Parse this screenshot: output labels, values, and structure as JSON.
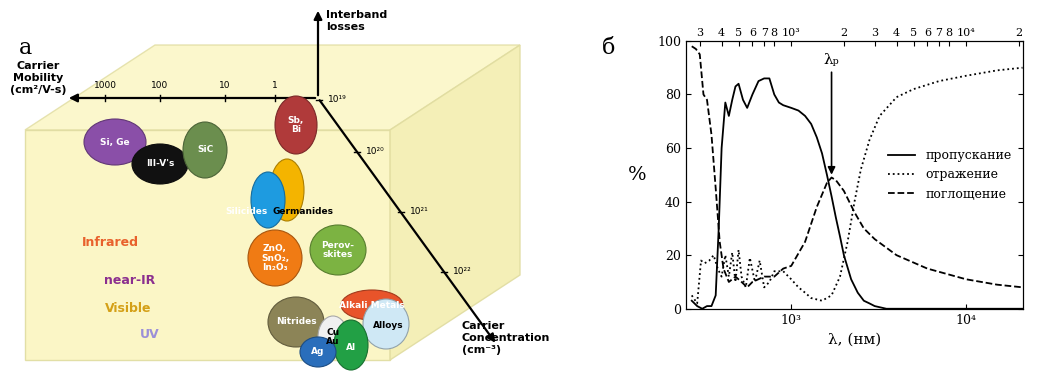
{
  "diagram": {
    "label": "а",
    "axes": {
      "vertical": {
        "label": "Interband\nlosses"
      },
      "mobility": {
        "label": "Carrier\nMobility\n(cm²/V-s)",
        "ticks": [
          "1000",
          "100",
          "10",
          "1"
        ]
      },
      "concentration": {
        "label": "Carrier\nConcentration\n(cm⁻³)",
        "ticks": [
          "10¹⁹",
          "10²⁰",
          "10²¹",
          "10²²"
        ]
      }
    },
    "regions": [
      {
        "label": "Infrared",
        "color": "#e8612c"
      },
      {
        "label": "near-IR",
        "color": "#8b2f8f"
      },
      {
        "label": "Visible",
        "color": "#d4a017"
      },
      {
        "label": "UV",
        "color": "#9b8fd8"
      }
    ],
    "materials": [
      {
        "label": "Si, Ge",
        "color": "#8a4fa8"
      },
      {
        "label": "III-V's",
        "color": "#111111"
      },
      {
        "label": "SiC",
        "color": "#6b8e4e"
      },
      {
        "label": "Sb,\nBi",
        "color": "#b03a3a"
      },
      {
        "label": "Germanides",
        "color": "#f4b400"
      },
      {
        "label": "Silicides",
        "color": "#1e9be0"
      },
      {
        "label": "ZnO,\nSnO₂,\nIn₂O₃",
        "color": "#f07b14"
      },
      {
        "label": "Perov-\nskites",
        "color": "#7cb342"
      },
      {
        "label": "Nitrides",
        "color": "#8c8457"
      },
      {
        "label": "Alkali Metals",
        "color": "#e8542a"
      },
      {
        "label": "Alloys",
        "color": "#cfe8f5"
      },
      {
        "label": "Cu\nAu",
        "color": "#f0f0f0"
      },
      {
        "label": "Al",
        "color": "#22a045"
      },
      {
        "label": "Ag",
        "color": "#2a6ebb"
      }
    ]
  },
  "chart_data": {
    "type": "line",
    "title": "б",
    "x_label": "λ, (нм)",
    "y_label": "%",
    "log": "x",
    "grid": false,
    "legend": "center right",
    "xlim": [
      250,
      21000
    ],
    "ylim": [
      0,
      100
    ],
    "yticks": [
      0,
      20,
      40,
      60,
      80,
      100
    ],
    "xticks": [
      {
        "value": 1000,
        "label": "10³"
      },
      {
        "value": 10000,
        "label": "10⁴"
      }
    ],
    "x2ticks": [
      {
        "value": 300,
        "label": "3"
      },
      {
        "value": 400,
        "label": "4"
      },
      {
        "value": 500,
        "label": "5"
      },
      {
        "value": 600,
        "label": "6"
      },
      {
        "value": 700,
        "label": "7"
      },
      {
        "value": 800,
        "label": "8"
      },
      {
        "value": 1000,
        "label": "10³"
      },
      {
        "value": 2000,
        "label": "2"
      },
      {
        "value": 3000,
        "label": "3"
      },
      {
        "value": 4000,
        "label": "4"
      },
      {
        "value": 5000,
        "label": "5"
      },
      {
        "value": 6000,
        "label": "6"
      },
      {
        "value": 7000,
        "label": "7"
      },
      {
        "value": 8000,
        "label": "8"
      },
      {
        "value": 10000,
        "label": "10⁴"
      },
      {
        "value": 20000,
        "label": "2"
      }
    ],
    "series": [
      {
        "name": "пропускание",
        "color": "#000000",
        "line_style": "solid",
        "x": [
          270,
          290,
          310,
          330,
          350,
          370,
          385,
          400,
          420,
          440,
          460,
          480,
          500,
          530,
          560,
          600,
          650,
          700,
          750,
          800,
          850,
          900,
          1000,
          1100,
          1200,
          1300,
          1400,
          1500,
          1600,
          1700,
          1800,
          1900,
          2000,
          2200,
          2400,
          2600,
          2800,
          3000,
          3500,
          5000,
          10000,
          21000
        ],
        "values": [
          3,
          1,
          0,
          1,
          1,
          5,
          30,
          60,
          77,
          72,
          78,
          83,
          84,
          78,
          75,
          80,
          85,
          86,
          86,
          80,
          77,
          76,
          75,
          74,
          72,
          69,
          64,
          58,
          50,
          42,
          34,
          27,
          20,
          11,
          6,
          3,
          2,
          1,
          0,
          0,
          0,
          0
        ]
      },
      {
        "name": "отражение",
        "color": "#000000",
        "line_style": "dotted",
        "x": [
          270,
          290,
          305,
          320,
          340,
          360,
          380,
          400,
          420,
          440,
          460,
          480,
          500,
          520,
          550,
          580,
          620,
          660,
          700,
          750,
          800,
          900,
          1000,
          1100,
          1200,
          1300,
          1500,
          1700,
          1900,
          2100,
          2300,
          2500,
          2800,
          3200,
          4000,
          5000,
          7000,
          10000,
          15000,
          21000
        ],
        "values": [
          5,
          2,
          18,
          17,
          18,
          20,
          15,
          12,
          20,
          12,
          21,
          10,
          22,
          12,
          8,
          19,
          10,
          18,
          8,
          10,
          14,
          14,
          11,
          8,
          6,
          4,
          3,
          5,
          12,
          25,
          40,
          52,
          63,
          72,
          79,
          82,
          85,
          87,
          89,
          90
        ]
      },
      {
        "name": "поглощение",
        "color": "#000000",
        "line_style": "dashed",
        "x": [
          270,
          285,
          300,
          315,
          330,
          350,
          370,
          390,
          410,
          440,
          480,
          520,
          560,
          600,
          700,
          800,
          900,
          1000,
          1200,
          1400,
          1600,
          1700,
          1800,
          2000,
          2300,
          2600,
          3000,
          4000,
          6000,
          10000,
          15000,
          21000
        ],
        "values": [
          98,
          97,
          95,
          80,
          78,
          65,
          45,
          25,
          15,
          10,
          12,
          10,
          8,
          10,
          12,
          12,
          15,
          16,
          25,
          38,
          47,
          49,
          48,
          44,
          36,
          30,
          26,
          20,
          15,
          11,
          9,
          8
        ]
      }
    ],
    "annotations": [
      {
        "text": "λₚ",
        "x": 1700,
        "y": 49
      }
    ]
  }
}
